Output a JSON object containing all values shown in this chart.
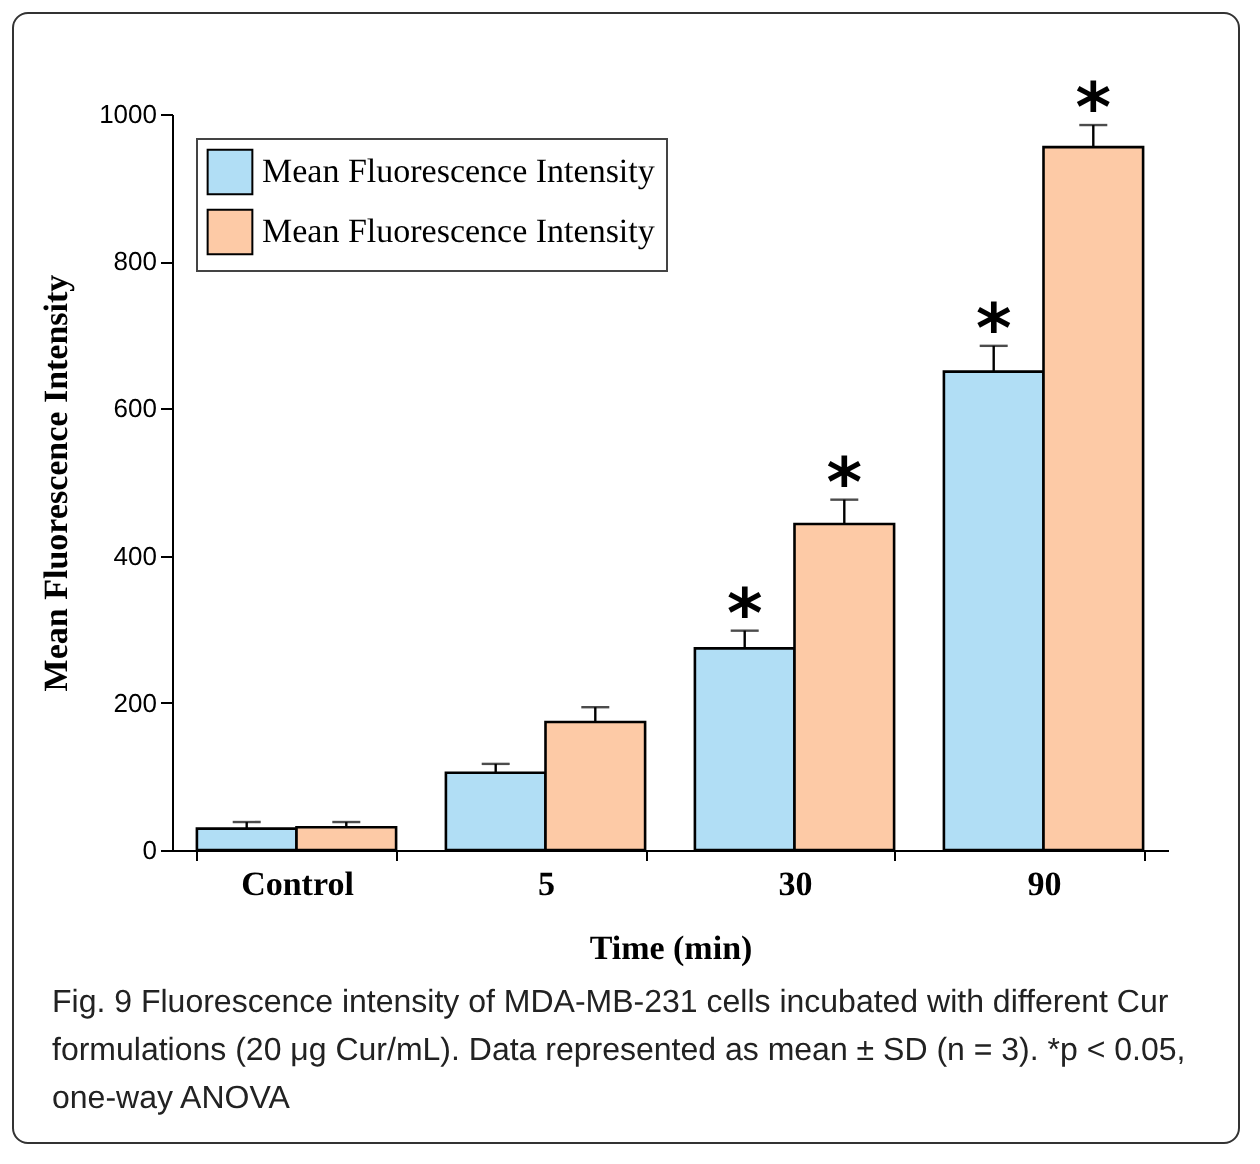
{
  "chart_data": {
    "type": "bar",
    "xlabel": "Time (min)",
    "ylabel": "Mean Fluorescence Intensity",
    "categories": [
      "Control",
      "5",
      "30",
      "90"
    ],
    "series": [
      {
        "name": "Mean Fluorescence Intensity",
        "color": "#b1def5",
        "values": [
          29,
          105,
          274,
          650
        ],
        "errors": [
          9,
          12,
          24,
          35
        ]
      },
      {
        "name": "Mean Fluorescence Intensity",
        "color": "#fdcaa6",
        "values": [
          31,
          174,
          443,
          955
        ],
        "errors": [
          7,
          20,
          33,
          30
        ]
      }
    ],
    "ylim": [
      0,
      1000
    ],
    "yticks": [
      0,
      200,
      400,
      600,
      800,
      1000
    ],
    "legend": "top left",
    "grid": false,
    "annotations": [
      {
        "text": "*",
        "x": "30",
        "y": 274
      },
      {
        "text": "*",
        "x": "30",
        "y": 443
      },
      {
        "text": "*",
        "x": "90",
        "y": 650
      },
      {
        "text": "*",
        "x": "90",
        "y": 955
      },
      "Fig. 9 Fluorescence intensity of MDA-MB-231 cells incubated with different Cur formulations (20 μg Cur/mL). Data represented as mean ± SD (n = 3). *p < 0.05, one-way ANOVA"
    ]
  }
}
